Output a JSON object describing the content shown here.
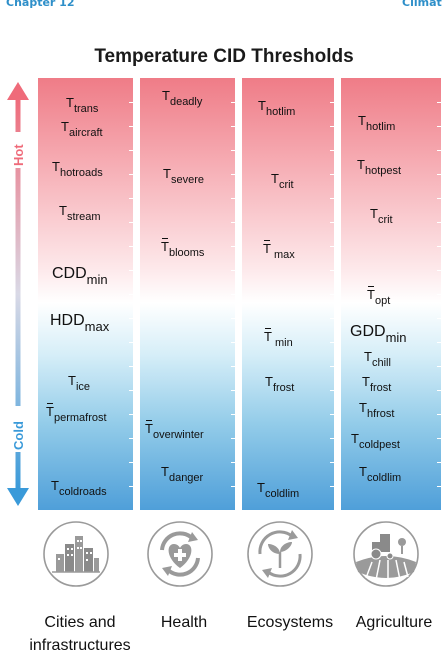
{
  "header": {
    "chapter": "Chapter 12",
    "right_fragment": "Climat"
  },
  "title": "Temperature CID Thresholds",
  "axis": {
    "hot_label": "Hot",
    "cold_label": "Cold",
    "hot_color": "#ef6b7a",
    "cold_color": "#3a9ad9"
  },
  "colors": {
    "top": "#ef7c87",
    "middle": "#ffffff",
    "bottom": "#4f9fd9"
  },
  "columns": [
    {
      "id": "cities",
      "caption_line1": "Cities and",
      "caption_line2": "infrastructures",
      "icon": "city-buildings-icon",
      "labels": [
        {
          "base": "T",
          "sub": "trans"
        },
        {
          "base": "T",
          "sub": "aircraft"
        },
        {
          "base": "T",
          "sub": "hotroads"
        },
        {
          "base": "T",
          "sub": "stream"
        },
        {
          "base": "CDD",
          "sub": "min"
        },
        {
          "base": "HDD",
          "sub": "max"
        },
        {
          "base": "T",
          "sub": "ice"
        },
        {
          "base": "T",
          "sub": "permafrost",
          "overline": true
        },
        {
          "base": "T",
          "sub": "coldroads"
        }
      ]
    },
    {
      "id": "health",
      "caption_line1": "Health",
      "icon": "health-heart-icon",
      "labels": [
        {
          "base": "T",
          "sub": "deadly"
        },
        {
          "base": "T",
          "sub": "severe"
        },
        {
          "base": "T",
          "sub": "blooms",
          "overline": true
        },
        {
          "base": "T",
          "sub": "overwinter",
          "overline": true
        },
        {
          "base": "T",
          "sub": "danger"
        }
      ]
    },
    {
      "id": "ecosystems",
      "caption_line1": "Ecosystems",
      "icon": "ecosystem-sprout-icon",
      "labels": [
        {
          "base": "T",
          "sub": "hotlim"
        },
        {
          "base": "T",
          "sub": "crit"
        },
        {
          "base": "T",
          "sub": " max",
          "overline": true
        },
        {
          "base": "T",
          "sub": " min",
          "overline": true
        },
        {
          "base": "T",
          "sub": "frost"
        },
        {
          "base": "T",
          "sub": "coldlim"
        }
      ]
    },
    {
      "id": "agriculture",
      "caption_line1": "Agriculture",
      "icon": "agriculture-tractor-icon",
      "labels": [
        {
          "base": "T",
          "sub": "hotlim"
        },
        {
          "base": "T",
          "sub": "hotpest"
        },
        {
          "base": "T",
          "sub": "crit"
        },
        {
          "base": "T",
          "sub": "opt",
          "overline": true
        },
        {
          "base": "GDD",
          "sub": "min"
        },
        {
          "base": "T",
          "sub": "chill"
        },
        {
          "base": "T",
          "sub": "frost"
        },
        {
          "base": "T",
          "sub": "hfrost"
        },
        {
          "base": "T",
          "sub": "coldpest"
        },
        {
          "base": "T",
          "sub": "coldlim"
        }
      ]
    }
  ]
}
